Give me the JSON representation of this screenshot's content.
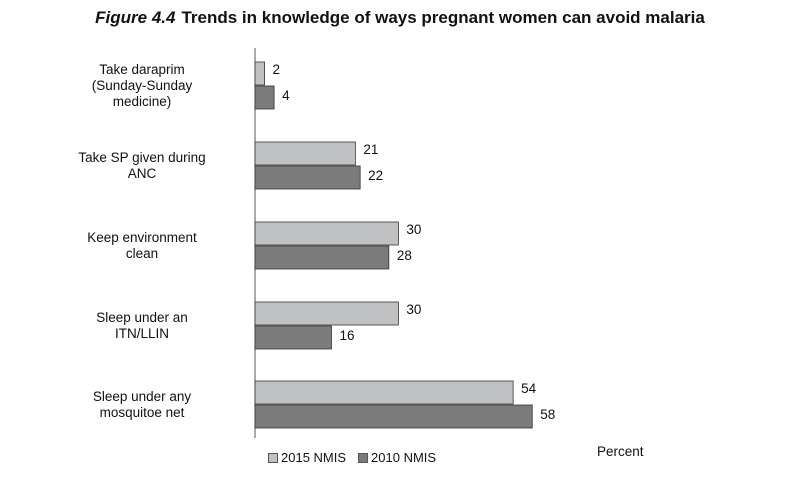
{
  "figure": {
    "number": "Figure 4.4",
    "title": "Trends in knowledge of ways pregnant women can avoid malaria"
  },
  "chart_data": {
    "type": "bar",
    "orientation": "horizontal",
    "categories": [
      "Take daraprim (Sunday-Sunday medicine)",
      "Take SP given during ANC",
      "Keep environment clean",
      "Sleep under an ITN/LLIN",
      "Sleep under any mosquitoe net"
    ],
    "series": [
      {
        "name": "2015 NMIS",
        "values": [
          2,
          21,
          30,
          30,
          54
        ],
        "color": "#c0c1c3"
      },
      {
        "name": "2010 NMIS",
        "values": [
          4,
          22,
          28,
          16,
          58
        ],
        "color": "#7a7b7d"
      }
    ],
    "xlabel": "Percent",
    "xlim": [
      0,
      100
    ],
    "grid": false,
    "legend_position": "bottom"
  }
}
